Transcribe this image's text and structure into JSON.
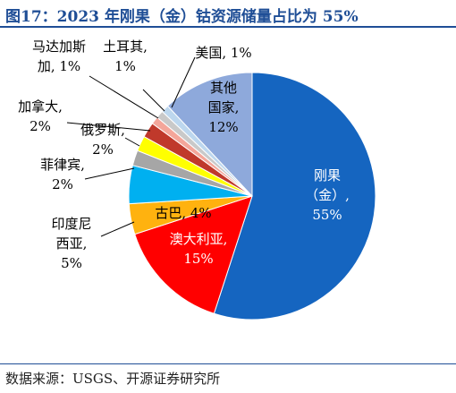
{
  "header": {
    "title": "图17：2023 年刚果（金）钴资源储量占比为 55%"
  },
  "footer": {
    "source": "数据来源：USGS、开源证券研究所"
  },
  "chart_data": {
    "type": "pie",
    "title": "图17：2023 年刚果（金）钴资源储量占比为 55%",
    "start": "12 o'clock",
    "direction": "clockwise",
    "slices": [
      {
        "name": "刚果（金）",
        "value": 55,
        "label": "55%",
        "color": "#1565c0",
        "label_lines": [
          "刚果",
          "（金）,",
          "55%"
        ],
        "label_color": "#ffffff"
      },
      {
        "name": "澳大利亚",
        "value": 15,
        "label": "15%",
        "color": "#ff0000",
        "label_lines": [
          "澳大利亚,",
          "15%"
        ],
        "label_color": "#ffffff"
      },
      {
        "name": "古巴",
        "value": 4,
        "label": "4%",
        "color": "#ffb20f",
        "label_lines": [
          "古巴, 4%"
        ],
        "label_color": "#000000"
      },
      {
        "name": "印度尼西亚",
        "value": 5,
        "label": "5%",
        "color": "#00b0f0",
        "label_lines": [
          "印度尼",
          "西亚,",
          "5%"
        ],
        "label_color": "#000000"
      },
      {
        "name": "菲律宾",
        "value": 2,
        "label": "2%",
        "color": "#a6a6a6",
        "label_lines": [
          "菲律宾,",
          "2%"
        ],
        "label_color": "#000000"
      },
      {
        "name": "俄罗斯",
        "value": 2,
        "label": "2%",
        "color": "#ffff00",
        "label_lines": [
          "俄罗斯,",
          "2%"
        ],
        "label_color": "#000000"
      },
      {
        "name": "加拿大",
        "value": 2,
        "label": "2%",
        "color": "#c0392b",
        "label_lines": [
          "加拿大,",
          "2%"
        ],
        "label_color": "#000000"
      },
      {
        "name": "马达加斯加",
        "value": 1,
        "label": "1%",
        "color": "#f4a69a",
        "label_lines": [
          "马达加斯",
          "加, 1%"
        ],
        "label_color": "#000000"
      },
      {
        "name": "土耳其",
        "value": 1,
        "label": "1%",
        "color": "#c9c9c9",
        "label_lines": [
          "土耳其,",
          "1%"
        ],
        "label_color": "#000000"
      },
      {
        "name": "美国",
        "value": 1,
        "label": "1%",
        "color": "#bdd7ee",
        "label_lines": [
          "美国, 1%"
        ],
        "label_color": "#000000"
      },
      {
        "name": "其他国家",
        "value": 12,
        "label": "12%",
        "color": "#8ea9db",
        "label_lines": [
          "其他",
          "国家,",
          "12%"
        ],
        "label_color": "#000000"
      }
    ]
  }
}
